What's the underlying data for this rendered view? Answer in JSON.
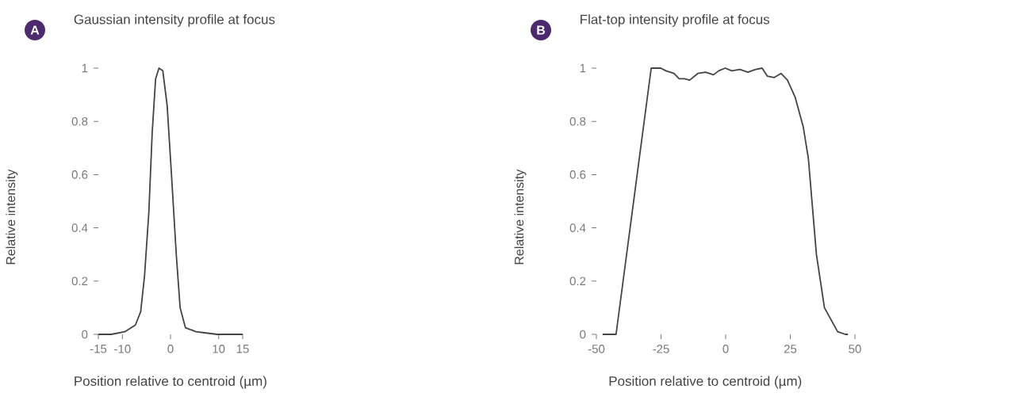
{
  "chart_data": [
    {
      "type": "line",
      "title": "Gaussian intensity profile at focus",
      "xlabel": "Position relative to centroid (µm)",
      "ylabel": "Relative intensity",
      "annotations": [
        "A"
      ],
      "color": "#444444",
      "x": [
        -15,
        -12.3,
        -9.5,
        -7.3,
        -6.2,
        -5.4,
        -4.5,
        -3.8,
        -3.1,
        -2.4,
        -1.6,
        -0.7,
        0.2,
        1.2,
        2.0,
        3.1,
        5.3,
        9.7,
        15
      ],
      "values": [
        0,
        0,
        0.01,
        0.035,
        0.085,
        0.22,
        0.46,
        0.76,
        0.96,
        1,
        0.99,
        0.86,
        0.6,
        0.3,
        0.1,
        0.025,
        0.01,
        0,
        0
      ],
      "xlim": [
        -15,
        15
      ],
      "ylim": [
        0,
        1
      ],
      "xticks": [
        -15,
        -10,
        0,
        10,
        15
      ],
      "yticks": [
        0,
        0.2,
        0.4,
        0.6,
        0.8,
        1
      ]
    },
    {
      "type": "line",
      "title": "Flat-top intensity profile at focus",
      "xlabel": "Position relative to centroid (µm)",
      "ylabel": "Relative intensity",
      "annotations": [
        "B"
      ],
      "color": "#444444",
      "x": [
        -47.6,
        -42.4,
        -28.8,
        -27.1,
        -25.1,
        -23.1,
        -20.0,
        -18.0,
        -16.0,
        -13.9,
        -10.8,
        -7.8,
        -4.7,
        -2.7,
        -0.2,
        2.4,
        5.5,
        8.6,
        11.6,
        14.1,
        16.1,
        18.8,
        21.4,
        23.9,
        26.9,
        30.0,
        32.0,
        35.1,
        38.2,
        43.3,
        46.3,
        47.3
      ],
      "values": [
        0,
        0,
        1,
        1.0,
        1.0,
        0.99,
        0.98,
        0.96,
        0.96,
        0.955,
        0.98,
        0.985,
        0.975,
        0.99,
        1.0,
        0.99,
        0.995,
        0.985,
        0.995,
        1,
        0.97,
        0.965,
        0.98,
        0.955,
        0.89,
        0.78,
        0.66,
        0.3,
        0.1,
        0.01,
        0,
        0
      ],
      "xlim": [
        -50,
        50
      ],
      "ylim": [
        0,
        1
      ],
      "xticks": [
        -50,
        -25,
        0,
        25,
        50
      ],
      "yticks": [
        0,
        0.2,
        0.4,
        0.6,
        0.8,
        1
      ]
    }
  ]
}
